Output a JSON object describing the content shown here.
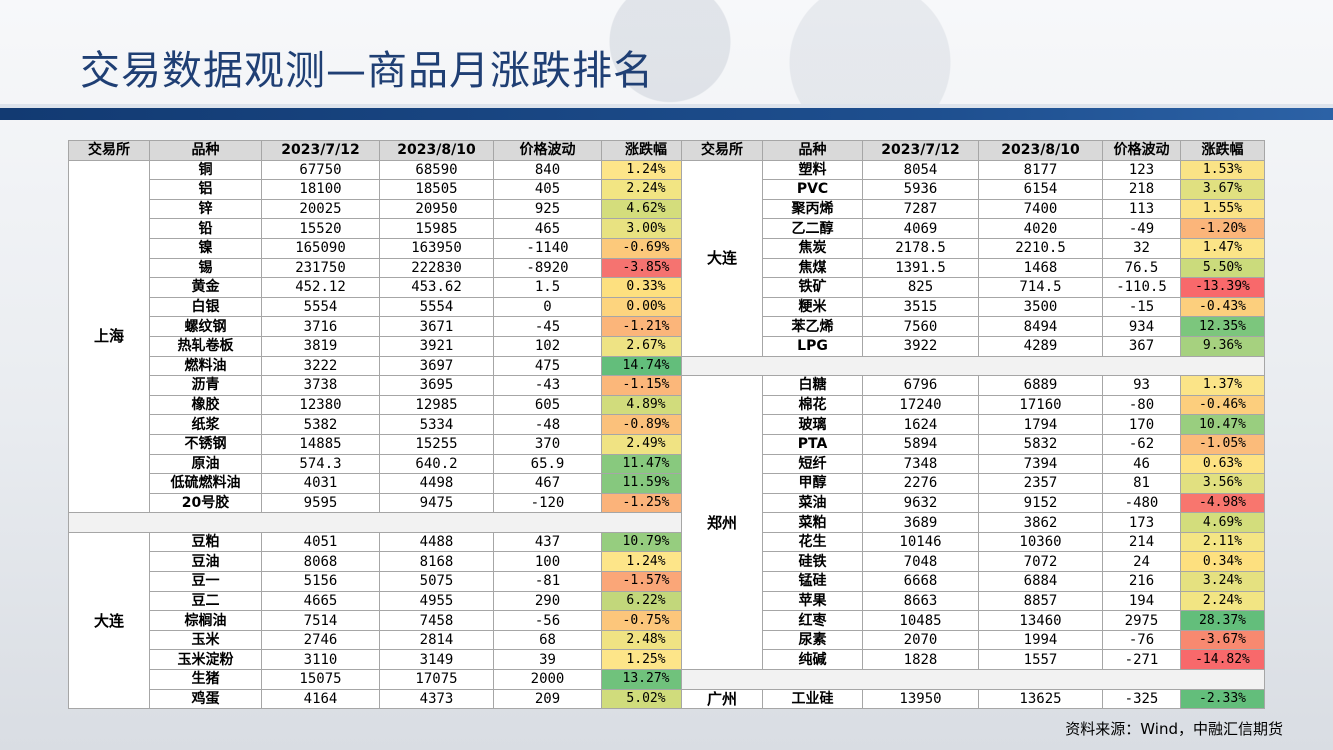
{
  "title": "交易数据观测—商品月涨跌排名",
  "source": "资料来源：Wind，中融汇信期货",
  "headers": [
    "交易所",
    "品种",
    "2023/7/12",
    "2023/8/10",
    "价格波动",
    "涨跌幅"
  ],
  "left_groups": [
    {
      "exchange": "上海",
      "rows": [
        [
          "铜",
          "67750",
          "68590",
          "840",
          "1.24%",
          "#fde589"
        ],
        [
          "铝",
          "18100",
          "18505",
          "405",
          "2.24%",
          "#f2e583"
        ],
        [
          "锌",
          "20025",
          "20950",
          "925",
          "4.62%",
          "#d4dd7c"
        ],
        [
          "铅",
          "15520",
          "15985",
          "465",
          "3.00%",
          "#e8e281"
        ],
        [
          "镍",
          "165090",
          "163950",
          "-1140",
          "-0.69%",
          "#fcc97b"
        ],
        [
          "锡",
          "231750",
          "222830",
          "-8920",
          "-3.85%",
          "#f57370"
        ],
        [
          "黄金",
          "452.12",
          "453.62",
          "1.5",
          "0.33%",
          "#fde07f"
        ],
        [
          "白银",
          "5554",
          "5554",
          "0",
          "0.00%",
          "#fdd47e"
        ],
        [
          "螺纹钢",
          "3716",
          "3671",
          "-45",
          "-1.21%",
          "#fbb57a"
        ],
        [
          "热轧卷板",
          "3819",
          "3921",
          "102",
          "2.67%",
          "#eee384"
        ],
        [
          "燃料油",
          "3222",
          "3697",
          "475",
          "14.74%",
          "#63be7b"
        ],
        [
          "沥青",
          "3738",
          "3695",
          "-43",
          "-1.15%",
          "#fbb77a"
        ],
        [
          "橡胶",
          "12380",
          "12985",
          "605",
          "4.89%",
          "#d1dc7c"
        ],
        [
          "纸浆",
          "5382",
          "5334",
          "-48",
          "-0.89%",
          "#fbc17b"
        ],
        [
          "不锈钢",
          "14885",
          "15255",
          "370",
          "2.49%",
          "#f0e383"
        ],
        [
          "原油",
          "574.3",
          "640.2",
          "65.9",
          "11.47%",
          "#88c97e"
        ],
        [
          "低硫燃料油",
          "4031",
          "4498",
          "467",
          "11.59%",
          "#86c87e"
        ],
        [
          "20号胶",
          "9595",
          "9475",
          "-120",
          "-1.25%",
          "#fbb37a"
        ]
      ]
    },
    {
      "exchange": "大连",
      "rows": [
        [
          "豆粕",
          "4051",
          "4488",
          "437",
          "10.79%",
          "#96cd7f"
        ],
        [
          "豆油",
          "8068",
          "8168",
          "100",
          "1.24%",
          "#fde589"
        ],
        [
          "豆一",
          "5156",
          "5075",
          "-81",
          "-1.57%",
          "#faa678"
        ],
        [
          "豆二",
          "4665",
          "4955",
          "290",
          "6.22%",
          "#c2d77b"
        ],
        [
          "棕榈油",
          "7514",
          "7458",
          "-56",
          "-0.75%",
          "#fcc67b"
        ],
        [
          "玉米",
          "2746",
          "2814",
          "68",
          "2.48%",
          "#f0e383"
        ],
        [
          "玉米淀粉",
          "3110",
          "3149",
          "39",
          "1.25%",
          "#fde589"
        ],
        [
          "生猪",
          "15075",
          "17075",
          "2000",
          "13.27%",
          "#70c27c"
        ],
        [
          "鸡蛋",
          "4164",
          "4373",
          "209",
          "5.02%",
          "#d0dc7c"
        ]
      ]
    }
  ],
  "right_groups": [
    {
      "exchange": "大连",
      "rows": [
        [
          "塑料",
          "8054",
          "8177",
          "123",
          "1.53%",
          "#fae386"
        ],
        [
          "PVC",
          "5936",
          "6154",
          "218",
          "3.67%",
          "#e0e080"
        ],
        [
          "聚丙烯",
          "7287",
          "7400",
          "113",
          "1.55%",
          "#fae386"
        ],
        [
          "乙二醇",
          "4069",
          "4020",
          "-49",
          "-1.20%",
          "#fbb57a"
        ],
        [
          "焦炭",
          "2178.5",
          "2210.5",
          "32",
          "1.47%",
          "#fbe487"
        ],
        [
          "焦煤",
          "1391.5",
          "1468",
          "76.5",
          "5.50%",
          "#cbdb7c"
        ],
        [
          "铁矿",
          "825",
          "714.5",
          "-110.5",
          "-13.39%",
          "#f8696b"
        ],
        [
          "粳米",
          "3515",
          "3500",
          "-15",
          "-0.43%",
          "#fccf7d"
        ],
        [
          "苯乙烯",
          "7560",
          "8494",
          "934",
          "12.35%",
          "#7cc67d"
        ],
        [
          "LPG",
          "3922",
          "4289",
          "367",
          "9.36%",
          "#a6d17f"
        ]
      ]
    },
    {
      "exchange": "郑州",
      "rows": [
        [
          "白糖",
          "6796",
          "6889",
          "93",
          "1.37%",
          "#fbe488"
        ],
        [
          "棉花",
          "17240",
          "17160",
          "-80",
          "-0.46%",
          "#fcce7d"
        ],
        [
          "玻璃",
          "1624",
          "1794",
          "170",
          "10.47%",
          "#99ce7f"
        ],
        [
          "PTA",
          "5894",
          "5832",
          "-62",
          "-1.05%",
          "#fbbb7a"
        ],
        [
          "短纤",
          "7348",
          "7394",
          "46",
          "0.63%",
          "#fde283"
        ],
        [
          "甲醇",
          "2276",
          "2357",
          "81",
          "3.56%",
          "#e1e080"
        ],
        [
          "菜油",
          "9632",
          "9152",
          "-480",
          "-4.98%",
          "#f8766e"
        ],
        [
          "菜粕",
          "3689",
          "3862",
          "173",
          "4.69%",
          "#d3dd7c"
        ],
        [
          "花生",
          "10146",
          "10360",
          "214",
          "2.11%",
          "#f4e584"
        ],
        [
          "硅铁",
          "7048",
          "7072",
          "24",
          "0.34%",
          "#fde07f"
        ],
        [
          "锰硅",
          "6668",
          "6884",
          "216",
          "3.24%",
          "#e5e180"
        ],
        [
          "苹果",
          "8663",
          "8857",
          "194",
          "2.24%",
          "#f2e583"
        ],
        [
          "红枣",
          "10485",
          "13460",
          "2975",
          "28.37%",
          "#63be7b"
        ],
        [
          "尿素",
          "2070",
          "1994",
          "-76",
          "-3.67%",
          "#f88970"
        ],
        [
          "纯碱",
          "1828",
          "1557",
          "-271",
          "-14.82%",
          "#f8696b"
        ]
      ]
    },
    {
      "exchange": "广州",
      "rows": [
        [
          "工业硅",
          "13950",
          "13625",
          "-325",
          "-2.33%",
          "#63be7b"
        ]
      ]
    }
  ]
}
